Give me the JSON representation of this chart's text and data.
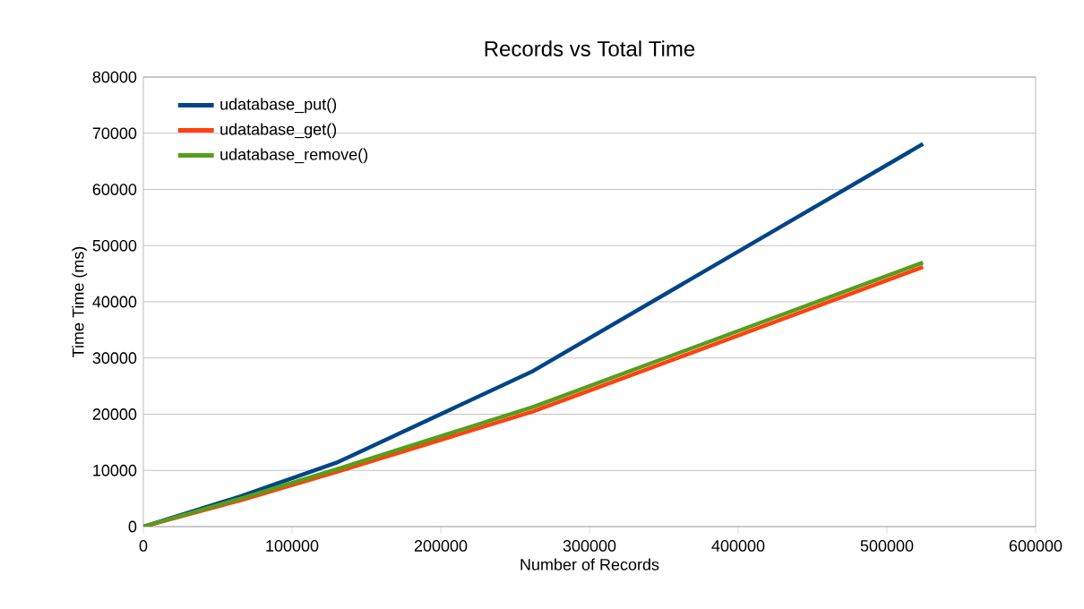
{
  "chart_data": {
    "type": "line",
    "title": "Records vs Total Time",
    "xlabel": "Number of Records",
    "ylabel": "Time Time (ms)",
    "x": [
      0,
      65536,
      131072,
      262144,
      524288
    ],
    "series": [
      {
        "name": "udatabase_put()",
        "color": "#004586",
        "values": [
          0,
          5400,
          11500,
          27700,
          68100
        ]
      },
      {
        "name": "udatabase_get()",
        "color": "#ff420e",
        "values": [
          0,
          4700,
          9800,
          20500,
          46200
        ]
      },
      {
        "name": "udatabase_remove()",
        "color": "#579d1c",
        "values": [
          0,
          5000,
          10300,
          21300,
          47000
        ]
      }
    ],
    "xlim": [
      0,
      600000
    ],
    "xticks": [
      0,
      100000,
      200000,
      300000,
      400000,
      500000,
      600000
    ],
    "ylim": [
      0,
      80000
    ],
    "yticks": [
      0,
      10000,
      20000,
      30000,
      40000,
      50000,
      60000,
      70000,
      80000
    ],
    "grid": "y",
    "legend": "top left",
    "marker": "none",
    "line_style": "solid"
  }
}
